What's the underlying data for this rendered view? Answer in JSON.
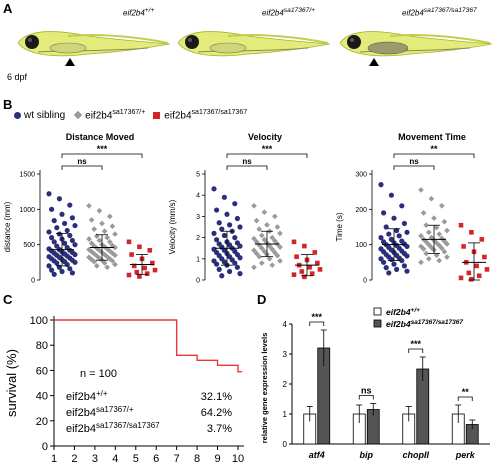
{
  "panels": {
    "a": "A",
    "b": "B",
    "c": "C",
    "d": "D"
  },
  "panel_a": {
    "genotypes": [
      "eif2b4+/+",
      "eif2b4sa17367/+",
      "eif2b4sa17367/sa17367"
    ],
    "geno_base": [
      "eif2b4",
      "eif2b4",
      "eif2b4"
    ],
    "geno_sup": [
      "+/+",
      "sa17367/+",
      "sa17367/sa17367"
    ],
    "age_label": "6 dpf"
  },
  "panel_b": {
    "legend": {
      "wt": "wt sibling",
      "het_base": "eif2b4",
      "het_sup": "sa17367/+",
      "hom_base": "eif2b4",
      "hom_sup": "sa17367/sa17367"
    },
    "colors": {
      "wt": "#2b2f7a",
      "het": "#9a9a9a",
      "hom": "#d4252a"
    }
  },
  "chart_data": [
    {
      "type": "scatter",
      "title": "Distance Moved",
      "ylabel": "distance (mm)",
      "ylim": [
        0,
        1500
      ],
      "yticks": [
        0,
        500,
        1000,
        1500
      ],
      "groups": [
        {
          "name": "wt sibling",
          "mean": 430,
          "sd": 230,
          "values": [
            1220,
            1150,
            1060,
            1000,
            930,
            880,
            840,
            800,
            770,
            740,
            700,
            680,
            650,
            630,
            600,
            580,
            560,
            540,
            520,
            500,
            480,
            460,
            440,
            430,
            420,
            410,
            400,
            390,
            380,
            370,
            360,
            350,
            340,
            330,
            320,
            310,
            300,
            290,
            280,
            270,
            260,
            250,
            240,
            220,
            200,
            180,
            160,
            140,
            120,
            100,
            80
          ]
        },
        {
          "name": "eif2b4 sa17367/+",
          "mean": 460,
          "sd": 180,
          "values": [
            1050,
            980,
            900,
            850,
            800,
            760,
            720,
            690,
            650,
            620,
            600,
            580,
            560,
            540,
            520,
            500,
            490,
            480,
            470,
            460,
            450,
            440,
            430,
            420,
            410,
            400,
            390,
            380,
            370,
            360,
            350,
            340,
            330,
            320,
            310,
            300,
            290,
            280,
            270,
            260,
            240,
            220,
            200,
            180
          ]
        },
        {
          "name": "eif2b4 sa17367/sa17367",
          "mean": 220,
          "sd": 140,
          "values": [
            540,
            470,
            420,
            360,
            300,
            240,
            200,
            170,
            140,
            110,
            90,
            70,
            50
          ]
        }
      ],
      "significance": [
        {
          "pair": [
            0,
            1
          ],
          "label": "ns"
        },
        {
          "pair": [
            0,
            2
          ],
          "label": "***"
        }
      ]
    },
    {
      "type": "scatter",
      "title": "Velocity",
      "ylabel": "Velocity (mm/s)",
      "ylim": [
        0,
        5
      ],
      "yticks": [
        0,
        1,
        2,
        3,
        4,
        5
      ],
      "groups": [
        {
          "name": "wt sibling",
          "mean": 1.5,
          "sd": 0.8,
          "values": [
            4.3,
            3.9,
            3.6,
            3.3,
            3.1,
            2.9,
            2.7,
            2.6,
            2.5,
            2.4,
            2.3,
            2.2,
            2.1,
            2.0,
            1.9,
            1.8,
            1.75,
            1.7,
            1.65,
            1.6,
            1.55,
            1.5,
            1.45,
            1.4,
            1.35,
            1.3,
            1.25,
            1.2,
            1.15,
            1.1,
            1.05,
            1.0,
            0.95,
            0.9,
            0.85,
            0.8,
            0.75,
            0.7,
            0.6,
            0.5,
            0.4,
            0.3,
            0.2
          ]
        },
        {
          "name": "eif2b4 sa17367/+",
          "mean": 1.7,
          "sd": 0.6,
          "values": [
            3.5,
            3.2,
            3.0,
            2.8,
            2.6,
            2.5,
            2.4,
            2.3,
            2.2,
            2.1,
            2.0,
            1.95,
            1.9,
            1.85,
            1.8,
            1.75,
            1.7,
            1.65,
            1.6,
            1.55,
            1.5,
            1.45,
            1.4,
            1.35,
            1.3,
            1.25,
            1.2,
            1.15,
            1.1,
            1.0,
            0.9,
            0.8,
            0.7,
            0.6
          ]
        },
        {
          "name": "eif2b4 sa17367/sa17367",
          "mean": 0.7,
          "sd": 0.5,
          "values": [
            1.8,
            1.6,
            1.3,
            1.1,
            0.95,
            0.8,
            0.7,
            0.6,
            0.5,
            0.4,
            0.3,
            0.25,
            0.15
          ]
        }
      ],
      "significance": [
        {
          "pair": [
            0,
            1
          ],
          "label": "ns"
        },
        {
          "pair": [
            0,
            2
          ],
          "label": "***"
        }
      ]
    },
    {
      "type": "scatter",
      "title": "Movement Time",
      "ylabel": "Time (s)",
      "ylim": [
        0,
        300
      ],
      "yticks": [
        0,
        100,
        200,
        300
      ],
      "groups": [
        {
          "name": "wt sibling",
          "mean": 100,
          "sd": 45,
          "values": [
            270,
            240,
            210,
            190,
            175,
            160,
            150,
            140,
            135,
            130,
            125,
            120,
            115,
            110,
            108,
            105,
            102,
            100,
            98,
            95,
            92,
            90,
            88,
            85,
            82,
            80,
            78,
            75,
            72,
            70,
            68,
            65,
            62,
            60,
            58,
            55,
            50,
            45,
            40,
            35,
            30,
            25,
            20
          ]
        },
        {
          "name": "eif2b4 sa17367/+",
          "mean": 115,
          "sd": 40,
          "values": [
            255,
            230,
            210,
            190,
            175,
            165,
            155,
            148,
            140,
            135,
            130,
            125,
            120,
            118,
            115,
            112,
            110,
            108,
            105,
            102,
            100,
            98,
            95,
            92,
            90,
            88,
            85,
            80,
            75,
            70,
            65,
            60,
            55,
            50
          ]
        },
        {
          "name": "eif2b4 sa17367/sa17367",
          "mean": 50,
          "sd": 55,
          "values": [
            155,
            135,
            115,
            95,
            80,
            65,
            50,
            40,
            30,
            20,
            12,
            6,
            2
          ]
        }
      ],
      "significance": [
        {
          "pair": [
            0,
            1
          ],
          "label": "ns"
        },
        {
          "pair": [
            0,
            2
          ],
          "label": "**"
        }
      ]
    },
    {
      "type": "line",
      "ylabel": "survival (%)",
      "ylim": [
        0,
        100
      ],
      "yticks": [
        0,
        20,
        40,
        60,
        80,
        100
      ],
      "xticks": [
        1,
        2,
        3,
        4,
        5,
        6,
        7,
        8,
        9,
        10
      ],
      "x": [
        1,
        7,
        7,
        8,
        8,
        9,
        9,
        10,
        10,
        10.2
      ],
      "y": [
        100,
        100,
        72,
        72,
        68,
        68,
        64,
        64,
        59,
        59
      ],
      "color": "#e8383d",
      "annotation": "n = 100",
      "table": [
        {
          "base": "eif2b4",
          "sup": "+/+",
          "value": "32.1%"
        },
        {
          "base": "eif2b4",
          "sup": "sa17367/+",
          "value": "64.2%"
        },
        {
          "base": "eif2b4",
          "sup": "sa17367/sa17367",
          "value": "3.7%"
        }
      ]
    },
    {
      "type": "bar",
      "ylabel": "relative gene expression levels",
      "ylim": [
        0,
        4
      ],
      "yticks": [
        0,
        1,
        2,
        3,
        4
      ],
      "categories": [
        "atf4",
        "bip",
        "chopII",
        "perk"
      ],
      "series": [
        {
          "name": "eif2b4+/+",
          "base": "eif2b4",
          "sup": "+/+",
          "values": [
            1.0,
            1.0,
            1.0,
            1.0
          ],
          "err": [
            0.25,
            0.3,
            0.25,
            0.3
          ],
          "color": "#ffffff"
        },
        {
          "name": "eif2b4sa17367/sa17367",
          "base": "eif2b4",
          "sup": "sa17367/sa17367",
          "values": [
            3.2,
            1.15,
            2.5,
            0.65
          ],
          "err": [
            0.6,
            0.2,
            0.4,
            0.15
          ],
          "color": "#555555"
        }
      ],
      "significance": [
        "***",
        "ns",
        "***",
        "**"
      ]
    }
  ]
}
